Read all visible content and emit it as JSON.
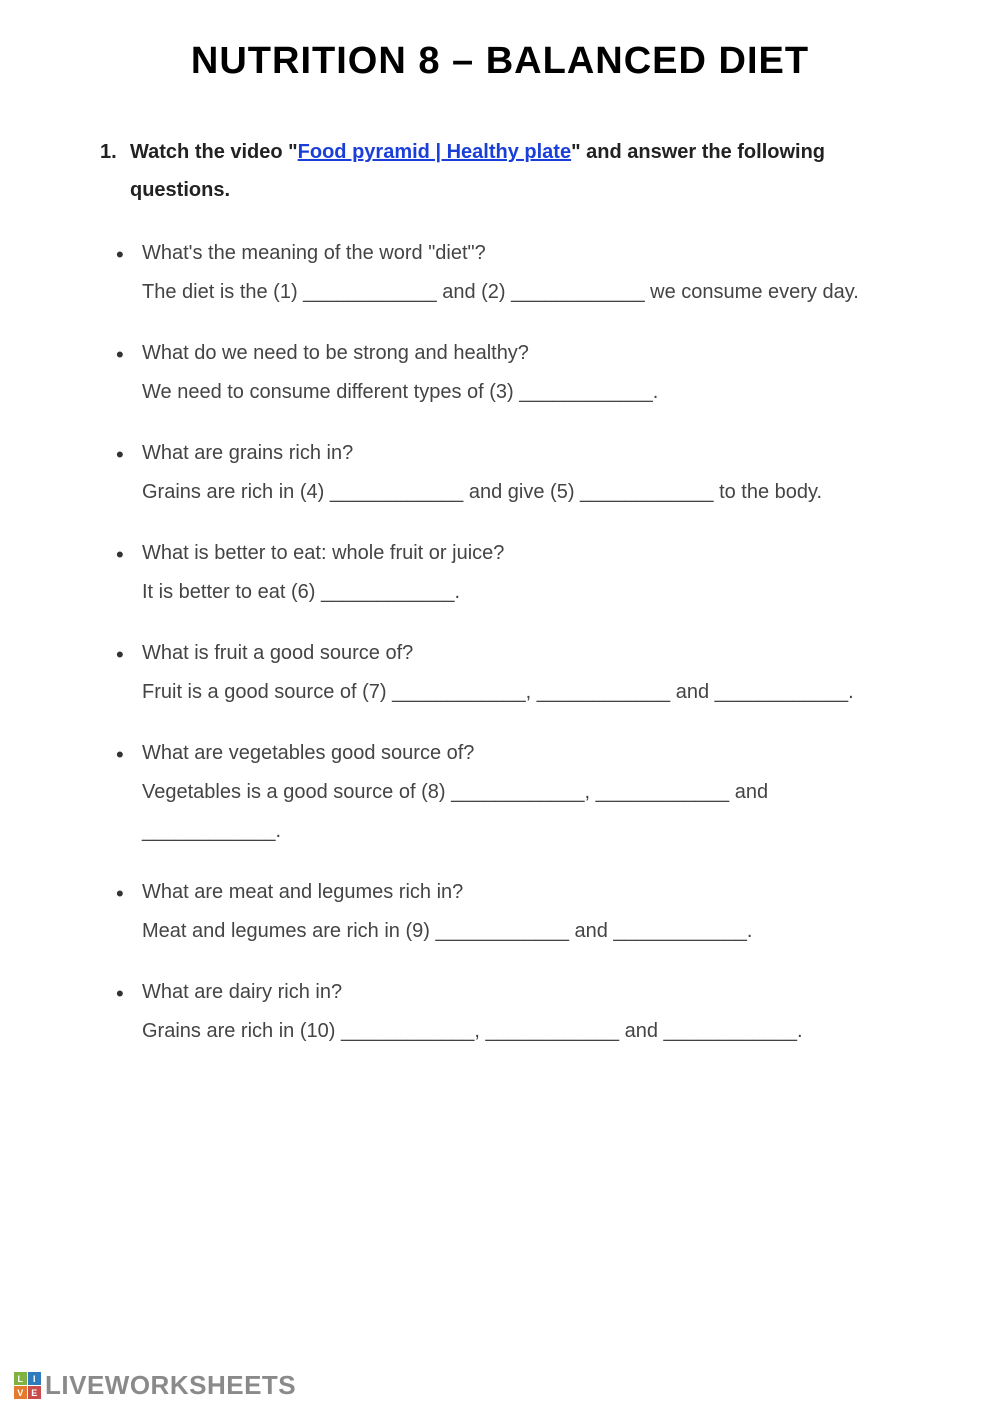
{
  "title": "Nutrition 8 – Balanced Diet",
  "instruction": {
    "number": "1.",
    "pre": "Watch the video \"",
    "link": "Food pyramid | Healthy plate",
    "post": "\" and answer the following questions."
  },
  "questions": [
    {
      "q": "What's the meaning of the word \"diet\"?",
      "a": "The diet is the (1) ____________ and (2) ____________ we consume every day."
    },
    {
      "q": "What do we need to be strong and healthy?",
      "a": "We need to consume different types of (3) ____________."
    },
    {
      "q": "What are grains rich in?",
      "a": "Grains are rich in (4) ____________ and give (5) ____________ to the body."
    },
    {
      "q": "What is better to eat: whole fruit or juice?",
      "a": "It is better to eat (6) ____________."
    },
    {
      "q": "What is fruit a good source of?",
      "a": "Fruit is a good source of (7) ____________, ____________ and ____________."
    },
    {
      "q": "What are vegetables good source of?",
      "a": "Vegetables is a good source of (8) ____________, ____________ and ____________."
    },
    {
      "q": "What are meat and legumes rich in?",
      "a": "Meat and legumes are rich in (9) ____________ and ____________."
    },
    {
      "q": "What are dairy rich in?",
      "a": "Grains are rich in (10) ____________, ____________ and ____________."
    }
  ],
  "watermark": {
    "text": "LIVEWORKSHEETS",
    "logo": [
      "L",
      "I",
      "V",
      "E"
    ]
  }
}
